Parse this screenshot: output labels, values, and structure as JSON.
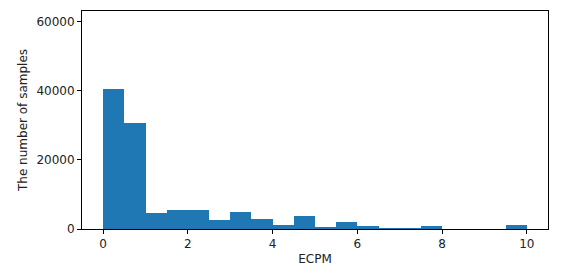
{
  "chart_data": {
    "type": "histogram",
    "x_label": "ECPM",
    "y_label": "The number of samples",
    "bins": [
      0,
      0.5,
      1,
      1.5,
      2,
      2.5,
      3,
      3.5,
      4,
      4.5,
      5,
      5.5,
      6,
      6.5,
      7,
      7.5,
      8,
      8.5,
      9,
      9.5,
      10
    ],
    "values": [
      40500,
      30500,
      4500,
      5500,
      5500,
      2700,
      4800,
      2800,
      1300,
      3800,
      500,
      2000,
      1000,
      400,
      400,
      900,
      0,
      0,
      0,
      1200
    ],
    "color": "#1f77b4",
    "xlim": [
      -0.5,
      10.5
    ],
    "xticks": [
      0,
      2,
      4,
      6,
      8,
      10
    ],
    "ylim": [
      0,
      63000
    ],
    "yticks": [
      0,
      20000,
      40000,
      60000
    ],
    "grid": false
  }
}
